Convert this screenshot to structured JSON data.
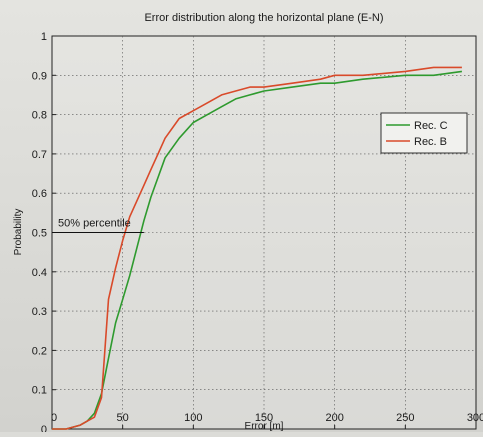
{
  "chart_data": {
    "type": "line",
    "title": "Error distribution along the horizontal plane (E-N)",
    "xlabel": "Error [m]",
    "ylabel": "Probability",
    "xlim": [
      0,
      300
    ],
    "ylim": [
      0,
      1
    ],
    "xticks": [
      0,
      50,
      100,
      150,
      200,
      250,
      300
    ],
    "yticks": [
      0,
      0.1,
      0.2,
      0.3,
      0.4,
      0.5,
      0.6,
      0.7,
      0.8,
      0.9,
      1
    ],
    "grid": true,
    "legend_position": "right",
    "series": [
      {
        "name": "Rec. C",
        "color": "#2e9a2e",
        "x": [
          0,
          10,
          20,
          25,
          30,
          35,
          40,
          45,
          50,
          55,
          60,
          65,
          70,
          75,
          80,
          90,
          100,
          110,
          120,
          130,
          140,
          150,
          170,
          190,
          200,
          220,
          250,
          270,
          290
        ],
        "y": [
          0,
          0,
          0.01,
          0.02,
          0.04,
          0.09,
          0.18,
          0.27,
          0.33,
          0.39,
          0.46,
          0.53,
          0.59,
          0.64,
          0.69,
          0.74,
          0.78,
          0.8,
          0.82,
          0.84,
          0.85,
          0.86,
          0.87,
          0.88,
          0.88,
          0.89,
          0.9,
          0.9,
          0.91
        ]
      },
      {
        "name": "Rec. B",
        "color": "#d94a2a",
        "x": [
          0,
          10,
          20,
          25,
          30,
          35,
          40,
          45,
          50,
          55,
          60,
          65,
          70,
          75,
          80,
          90,
          100,
          110,
          120,
          130,
          140,
          150,
          170,
          190,
          200,
          220,
          250,
          270,
          290
        ],
        "y": [
          0,
          0,
          0.01,
          0.02,
          0.03,
          0.08,
          0.33,
          0.41,
          0.48,
          0.54,
          0.58,
          0.62,
          0.66,
          0.7,
          0.74,
          0.79,
          0.81,
          0.83,
          0.85,
          0.86,
          0.87,
          0.87,
          0.88,
          0.89,
          0.9,
          0.9,
          0.91,
          0.92,
          0.92
        ]
      }
    ],
    "annotations": [
      {
        "text": "50% percentile",
        "x": 0,
        "y": 0.5,
        "line_to_x": 65
      }
    ]
  }
}
